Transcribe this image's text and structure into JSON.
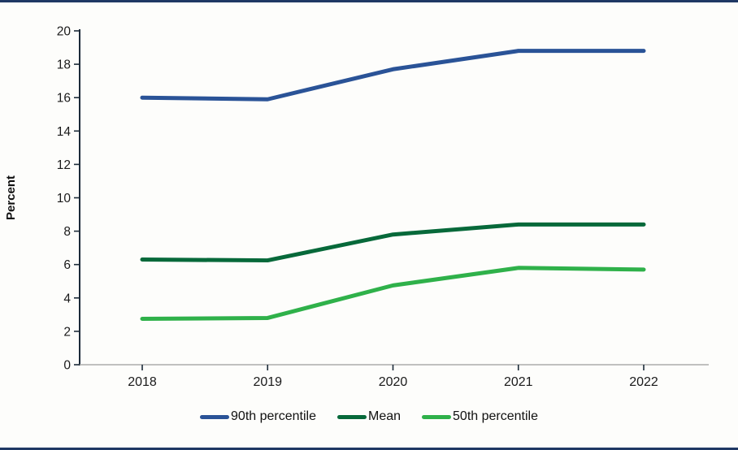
{
  "figure": {
    "top_rule_color": "#1F3864",
    "bottom_rule_color": "#1F3864",
    "background_color": "#FDFDFB",
    "plot_background_color": "#FFFFFF"
  },
  "chart_data": {
    "type": "line",
    "title": "",
    "xlabel": "",
    "ylabel": "Percent",
    "categories": [
      "2018",
      "2019",
      "2020",
      "2021",
      "2022"
    ],
    "ylim": [
      0,
      20
    ],
    "ytick_step": 2,
    "yticks": [
      0,
      2,
      4,
      6,
      8,
      10,
      12,
      14,
      16,
      18,
      20
    ],
    "grid": false,
    "legend_position": "bottom-center",
    "series": [
      {
        "name": "90th percentile",
        "color": "#2A5397",
        "values": [
          16.0,
          15.9,
          17.7,
          18.8,
          18.8
        ]
      },
      {
        "name": "Mean",
        "color": "#07693A",
        "values": [
          6.3,
          6.25,
          7.8,
          8.4,
          8.4
        ]
      },
      {
        "name": "50th percentile",
        "color": "#2FB14A",
        "values": [
          2.75,
          2.8,
          4.75,
          5.8,
          5.7
        ]
      }
    ],
    "axis_style": {
      "y_axis_line_color": "#1C2B39",
      "x_axis_line_color": "#ABABAB",
      "tick_mark_color": "#1C2B39",
      "tick_label_color": "#1A1A1A"
    }
  }
}
